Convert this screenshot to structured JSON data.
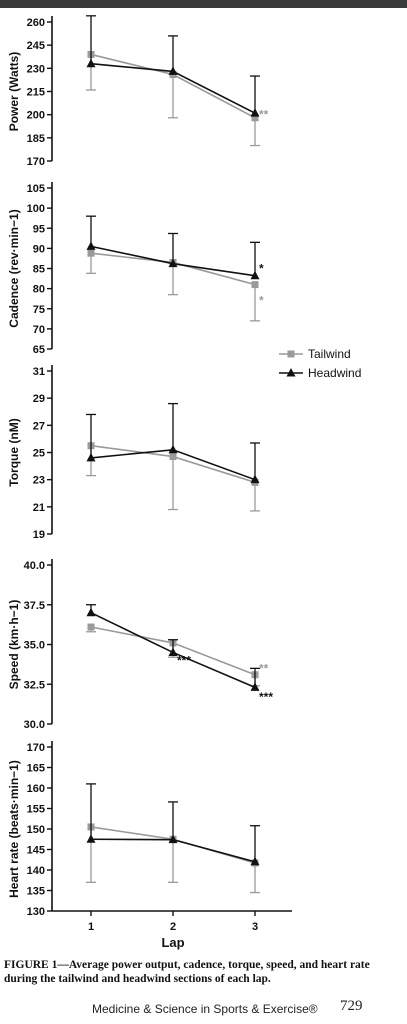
{
  "caption": "FIGURE 1—Average power output, cadence, torque, speed, and heart rate during the tailwind and headwind sections of each lap.",
  "footer": {
    "journal": "Medicine & Science in Sports & Exercise®",
    "page": "729"
  },
  "colors": {
    "tailwind": "#9a9a9a",
    "headwind": "#111111"
  },
  "chart_data": [
    {
      "type": "line",
      "ylabel": "Power (Watts)",
      "xlabel": "",
      "ylim": [
        170,
        260
      ],
      "yticks": [
        170,
        185,
        200,
        215,
        230,
        245,
        260
      ],
      "x": [
        1,
        2,
        3
      ],
      "series": [
        {
          "name": "Tailwind",
          "values": [
            239,
            226,
            198
          ],
          "error": [
            23,
            28,
            18
          ],
          "marker": "square"
        },
        {
          "name": "Headwind",
          "values": [
            233,
            228,
            201
          ],
          "error": [
            31,
            23,
            24
          ],
          "marker": "triangle"
        }
      ],
      "annotations": [
        {
          "x": 3,
          "y": 200,
          "text": "**",
          "series": "Tailwind"
        }
      ]
    },
    {
      "type": "line",
      "ylabel": "Cadence (rev·min−1)",
      "xlabel": "",
      "ylim": [
        65,
        105
      ],
      "yticks": [
        65,
        70,
        75,
        80,
        85,
        90,
        95,
        100,
        105
      ],
      "x": [
        1,
        2,
        3
      ],
      "series": [
        {
          "name": "Tailwind",
          "values": [
            88.8,
            86.5,
            81.0
          ],
          "error": [
            5,
            8,
            9
          ],
          "marker": "square"
        },
        {
          "name": "Headwind",
          "values": [
            90.5,
            86.2,
            83.2
          ],
          "error": [
            7.5,
            7.5,
            8.3
          ],
          "marker": "triangle"
        }
      ],
      "annotations": [
        {
          "x": 3,
          "y": 85,
          "text": "*",
          "series": "Headwind"
        },
        {
          "x": 3,
          "y": 77,
          "text": "*",
          "series": "Tailwind"
        }
      ]
    },
    {
      "type": "line",
      "ylabel": "Torque (nM)",
      "xlabel": "",
      "ylim": [
        19,
        31
      ],
      "yticks": [
        19,
        21,
        23,
        25,
        27,
        29,
        31
      ],
      "x": [
        1,
        2,
        3
      ],
      "series": [
        {
          "name": "Tailwind",
          "values": [
            25.5,
            24.7,
            22.8
          ],
          "error": [
            2.2,
            3.9,
            2.1
          ],
          "marker": "square"
        },
        {
          "name": "Headwind",
          "values": [
            24.6,
            25.2,
            23.0
          ],
          "error": [
            3.2,
            3.4,
            2.7
          ],
          "marker": "triangle"
        }
      ]
    },
    {
      "type": "line",
      "ylabel": "Speed (km·h−1)",
      "xlabel": "",
      "ylim": [
        30.0,
        40.0
      ],
      "yticks": [
        30.0,
        32.5,
        35.0,
        37.5,
        40.0
      ],
      "ytick_labels": [
        "30.0",
        "32.5",
        "35.0",
        "37.5",
        "40.0"
      ],
      "x": [
        1,
        2,
        3
      ],
      "series": [
        {
          "name": "Tailwind",
          "values": [
            36.1,
            35.1,
            33.1
          ],
          "error": [
            0.3,
            0.9,
            0.7
          ],
          "marker": "square"
        },
        {
          "name": "Headwind",
          "values": [
            37.0,
            34.5,
            32.3
          ],
          "error": [
            0.5,
            0.8,
            1.2
          ],
          "marker": "triangle"
        }
      ],
      "annotations": [
        {
          "x": 2,
          "y": 34.0,
          "text": "***",
          "series": "Headwind"
        },
        {
          "x": 3,
          "y": 33.5,
          "text": "**",
          "series": "Tailwind"
        },
        {
          "x": 3,
          "y": 31.7,
          "text": "***",
          "series": "Headwind"
        }
      ]
    },
    {
      "type": "line",
      "ylabel": "Heart rate (beats·min−1)",
      "xlabel": "Lap",
      "ylim": [
        130,
        170
      ],
      "yticks": [
        130,
        135,
        140,
        145,
        150,
        155,
        160,
        165,
        170
      ],
      "x": [
        1,
        2,
        3
      ],
      "xticks": [
        "1",
        "2",
        "3"
      ],
      "series": [
        {
          "name": "Tailwind",
          "values": [
            150.5,
            147.5,
            141.7
          ],
          "error": [
            13.5,
            10.5,
            7.2
          ],
          "marker": "square"
        },
        {
          "name": "Headwind",
          "values": [
            147.5,
            147.4,
            142.0
          ],
          "error": [
            13.5,
            9.2,
            8.8
          ],
          "marker": "triangle"
        }
      ]
    }
  ],
  "legend": {
    "placement": "right, between cadence and torque panels",
    "items": [
      {
        "label": "Tailwind",
        "marker": "square"
      },
      {
        "label": "Headwind",
        "marker": "triangle"
      }
    ]
  }
}
